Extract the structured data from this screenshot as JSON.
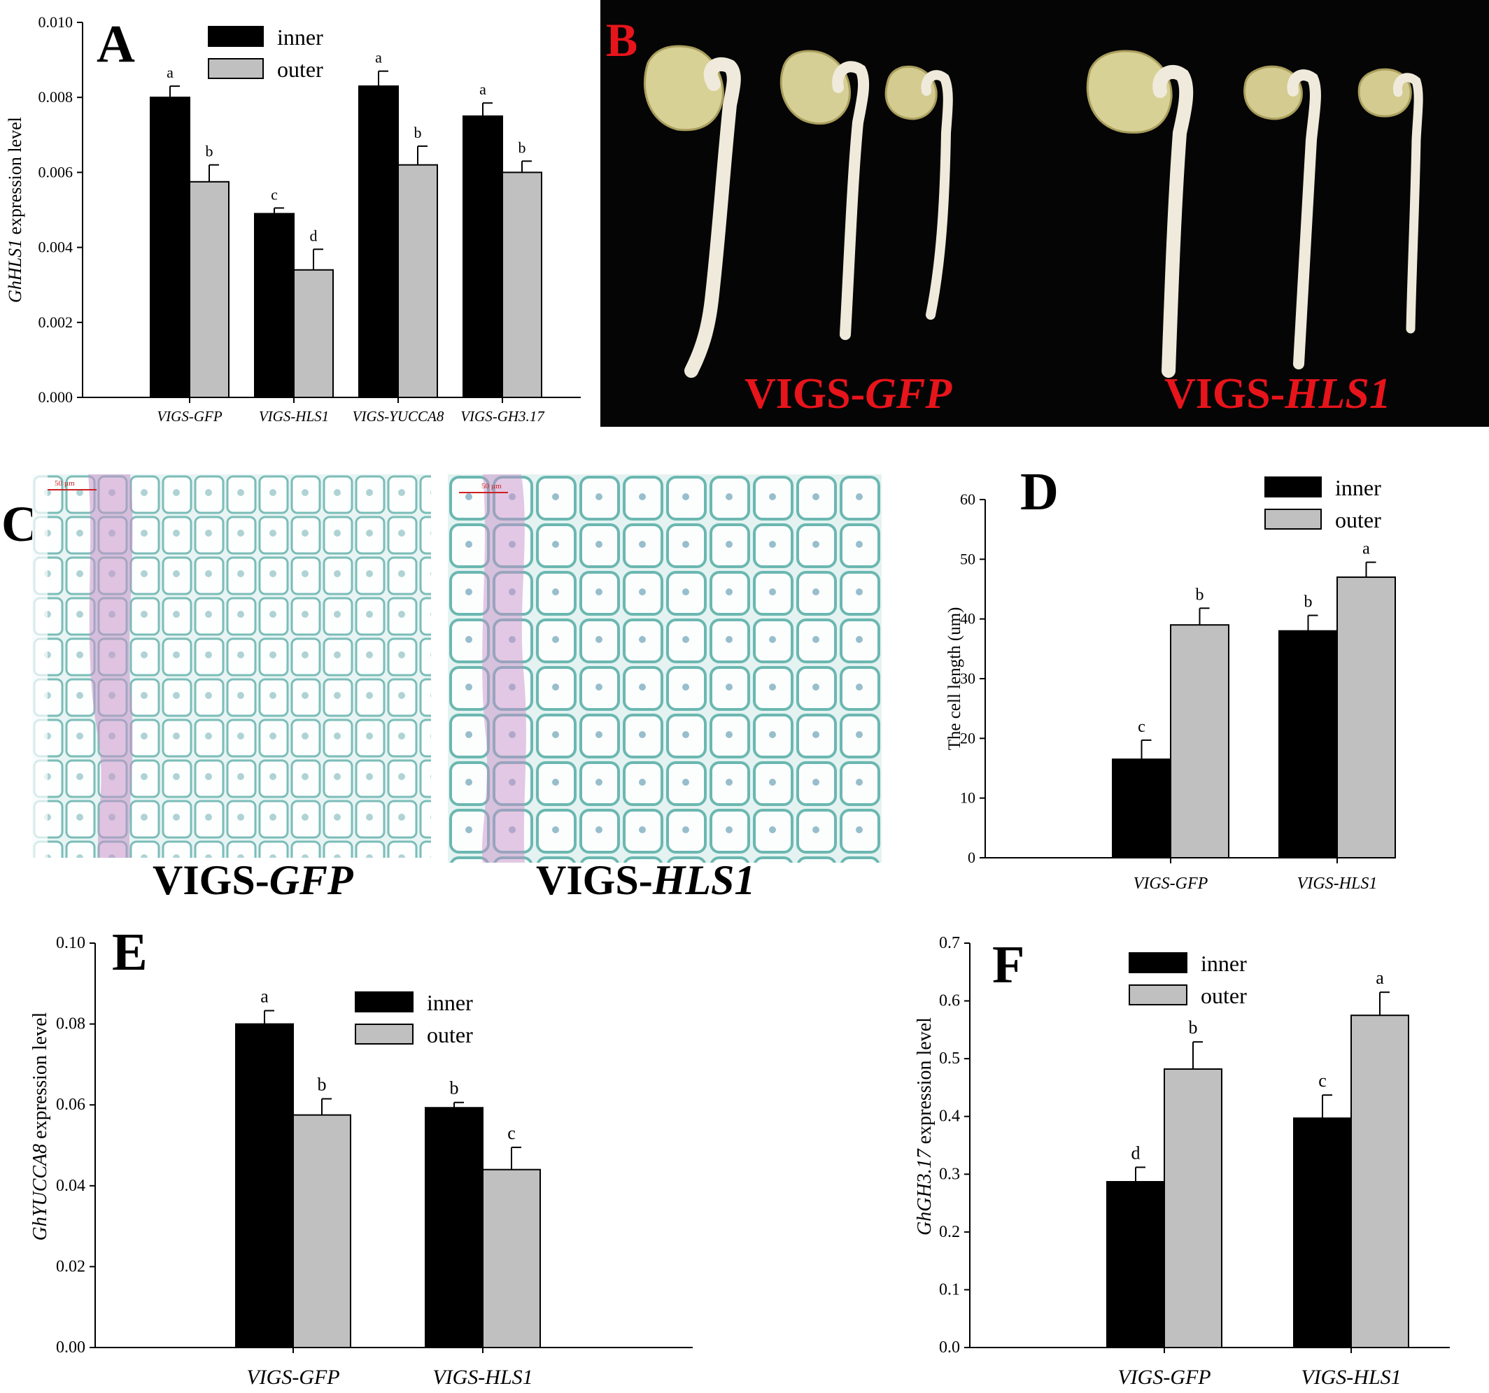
{
  "colors": {
    "inner": "#000000",
    "outer": "#c0c0c0",
    "photo_bg": "#050505",
    "caption_red": "#e8141b",
    "histo_bg": "#e7f4f3",
    "cell_wall": "#6fb7b2",
    "phloem_pink": "#c792c9"
  },
  "panel_b": {
    "letter": "B",
    "caption_left_prefix": "VIGS-",
    "caption_left_gene": "GFP",
    "caption_right_prefix": "VIGS-",
    "caption_right_gene": "HLS1"
  },
  "panel_c": {
    "letter": "C",
    "scale_label_left": "50 µm",
    "scale_label_right": "50 µm",
    "caption_left_prefix": "VIGS-",
    "caption_left_gene": "GFP",
    "caption_right_prefix": "VIGS-",
    "caption_right_gene": "HLS1"
  },
  "chart_data": [
    {
      "id": "A",
      "letter": "A",
      "type": "bar",
      "categories": [
        "VIGS-GFP",
        "VIGS-HLS1",
        "VIGS-YUCCA8",
        "VIGS-GH3.17"
      ],
      "series": [
        {
          "name": "inner",
          "values": [
            0.008,
            0.0049,
            0.0083,
            0.0075
          ],
          "errors": [
            0.0003,
            0.00015,
            0.0004,
            0.00035
          ],
          "letters": [
            "a",
            "c",
            "a",
            "a"
          ]
        },
        {
          "name": "outer",
          "values": [
            0.00575,
            0.0034,
            0.0062,
            0.006
          ],
          "errors": [
            0.00045,
            0.00055,
            0.0005,
            0.0003
          ],
          "letters": [
            "b",
            "d",
            "b",
            "b"
          ]
        }
      ],
      "ylabel_gene": "GhHLS1",
      "ylabel_suffix": " expression level",
      "ylim": [
        0,
        0.01
      ],
      "yticks": [
        "0.000",
        "0.002",
        "0.004",
        "0.006",
        "0.008",
        "0.010"
      ],
      "legend_position": "top-center"
    },
    {
      "id": "D",
      "letter": "D",
      "type": "bar",
      "categories": [
        "VIGS-GFP",
        "VIGS-HLS1"
      ],
      "series": [
        {
          "name": "inner",
          "values": [
            16.5,
            38
          ],
          "errors": [
            3.2,
            2.6
          ],
          "letters": [
            "c",
            "b"
          ]
        },
        {
          "name": "outer",
          "values": [
            39,
            47
          ],
          "errors": [
            2.8,
            2.5
          ],
          "letters": [
            "b",
            "a"
          ]
        }
      ],
      "ylabel_gene": "",
      "ylabel_suffix": "The cell length (um)",
      "ylim": [
        0,
        60
      ],
      "yticks": [
        "0",
        "10",
        "20",
        "30",
        "40",
        "50",
        "60"
      ],
      "legend_position": "top-right"
    },
    {
      "id": "E",
      "letter": "E",
      "type": "bar",
      "categories": [
        "VIGS-GFP",
        "VIGS-HLS1"
      ],
      "series": [
        {
          "name": "inner",
          "values": [
            0.08,
            0.0593
          ],
          "errors": [
            0.0033,
            0.0013
          ],
          "letters": [
            "a",
            "b"
          ]
        },
        {
          "name": "outer",
          "values": [
            0.0575,
            0.044
          ],
          "errors": [
            0.004,
            0.0055
          ],
          "letters": [
            "b",
            "c"
          ]
        }
      ],
      "ylabel_gene": "GhYUCCA8",
      "ylabel_suffix": " expression level",
      "ylim": [
        0,
        0.1
      ],
      "yticks": [
        "0.00",
        "0.02",
        "0.04",
        "0.06",
        "0.08",
        "0.10"
      ],
      "legend_position": "top-center"
    },
    {
      "id": "F",
      "letter": "F",
      "type": "bar",
      "categories": [
        "VIGS-GFP",
        "VIGS-HLS1"
      ],
      "series": [
        {
          "name": "inner",
          "values": [
            0.287,
            0.397
          ],
          "errors": [
            0.025,
            0.04
          ],
          "letters": [
            "d",
            "c"
          ]
        },
        {
          "name": "outer",
          "values": [
            0.482,
            0.575
          ],
          "errors": [
            0.047,
            0.04
          ],
          "letters": [
            "b",
            "a"
          ]
        }
      ],
      "ylabel_gene": "GhGH3.17",
      "ylabel_suffix": " expression level",
      "ylim": [
        0,
        0.7
      ],
      "yticks": [
        "0.0",
        "0.1",
        "0.2",
        "0.3",
        "0.4",
        "0.5",
        "0.6",
        "0.7"
      ],
      "legend_position": "top-center"
    }
  ]
}
